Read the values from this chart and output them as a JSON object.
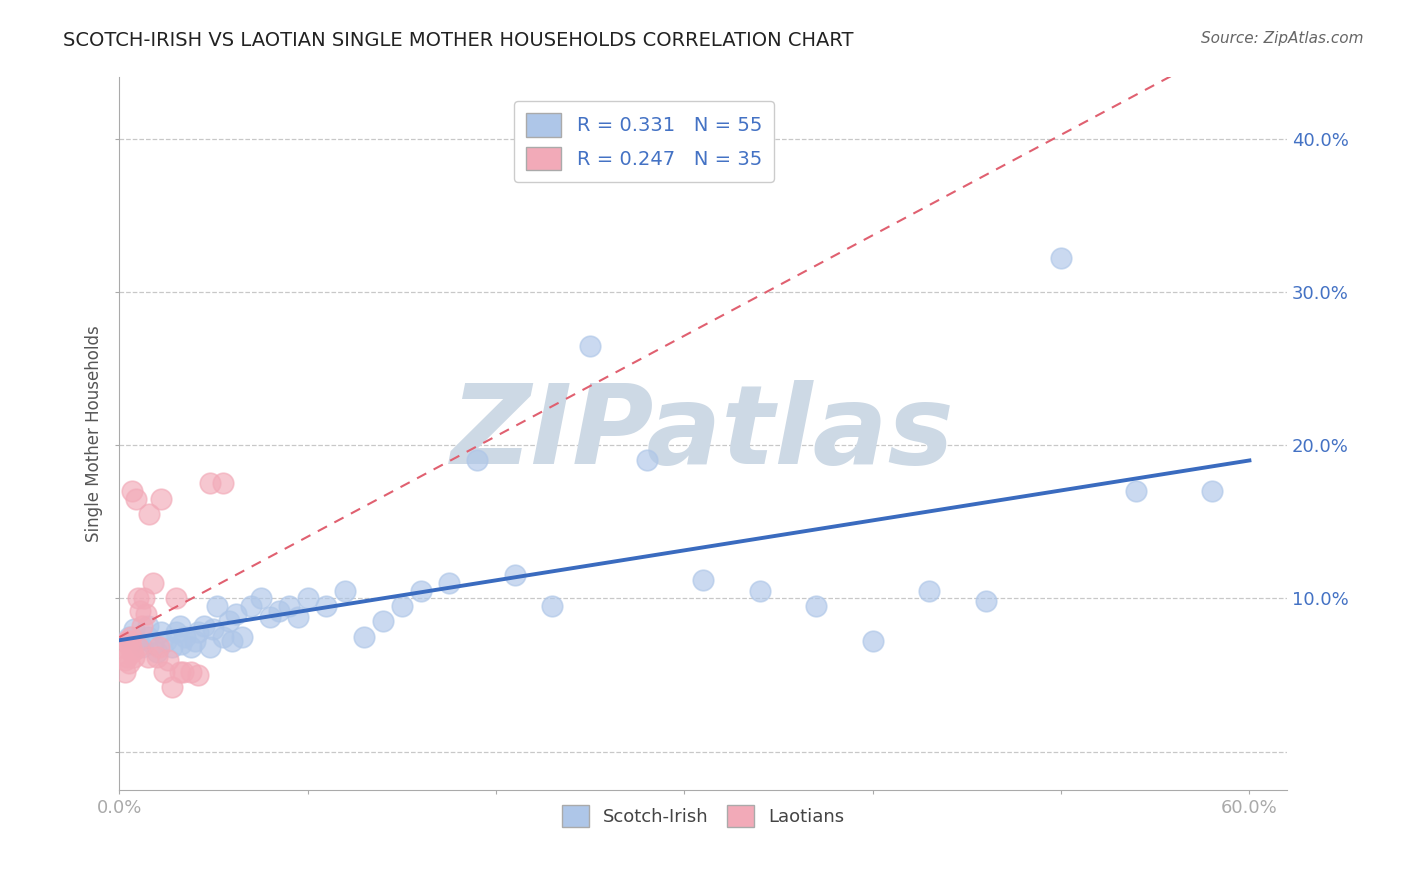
{
  "title": "SCOTCH-IRISH VS LAOTIAN SINGLE MOTHER HOUSEHOLDS CORRELATION CHART",
  "source": "Source: ZipAtlas.com",
  "ylabel": "Single Mother Households",
  "xlim": [
    0.0,
    0.62
  ],
  "ylim": [
    -0.025,
    0.44
  ],
  "scotch_irish_R": 0.331,
  "scotch_irish_N": 55,
  "laotian_R": 0.247,
  "laotian_N": 35,
  "scotch_irish_color": "#aec6e8",
  "laotian_color": "#f2aab8",
  "trend_scotch_color": "#3a6bbf",
  "trend_laotian_color": "#e06070",
  "scotch_irish_x": [
    0.005,
    0.008,
    0.01,
    0.012,
    0.015,
    0.015,
    0.018,
    0.02,
    0.022,
    0.025,
    0.028,
    0.03,
    0.032,
    0.033,
    0.035,
    0.038,
    0.04,
    0.042,
    0.045,
    0.048,
    0.05,
    0.052,
    0.055,
    0.058,
    0.06,
    0.062,
    0.065,
    0.07,
    0.075,
    0.08,
    0.085,
    0.09,
    0.095,
    0.1,
    0.11,
    0.12,
    0.13,
    0.14,
    0.15,
    0.16,
    0.175,
    0.19,
    0.21,
    0.23,
    0.25,
    0.28,
    0.31,
    0.34,
    0.37,
    0.4,
    0.43,
    0.46,
    0.5,
    0.54,
    0.58
  ],
  "scotch_irish_y": [
    0.075,
    0.08,
    0.072,
    0.068,
    0.075,
    0.082,
    0.07,
    0.065,
    0.078,
    0.072,
    0.068,
    0.078,
    0.082,
    0.07,
    0.075,
    0.068,
    0.072,
    0.078,
    0.082,
    0.068,
    0.08,
    0.095,
    0.075,
    0.085,
    0.072,
    0.09,
    0.075,
    0.095,
    0.1,
    0.088,
    0.092,
    0.095,
    0.088,
    0.1,
    0.095,
    0.105,
    0.075,
    0.085,
    0.095,
    0.105,
    0.11,
    0.19,
    0.115,
    0.095,
    0.265,
    0.19,
    0.112,
    0.105,
    0.095,
    0.072,
    0.105,
    0.098,
    0.322,
    0.17,
    0.17
  ],
  "laotian_x": [
    0.002,
    0.003,
    0.003,
    0.004,
    0.004,
    0.005,
    0.005,
    0.006,
    0.006,
    0.007,
    0.007,
    0.008,
    0.009,
    0.01,
    0.01,
    0.011,
    0.012,
    0.013,
    0.014,
    0.015,
    0.016,
    0.018,
    0.02,
    0.021,
    0.022,
    0.024,
    0.026,
    0.028,
    0.03,
    0.032,
    0.034,
    0.038,
    0.042,
    0.048,
    0.055
  ],
  "laotian_y": [
    0.068,
    0.06,
    0.052,
    0.062,
    0.072,
    0.058,
    0.072,
    0.068,
    0.075,
    0.065,
    0.17,
    0.062,
    0.165,
    0.068,
    0.1,
    0.092,
    0.082,
    0.1,
    0.09,
    0.062,
    0.155,
    0.11,
    0.062,
    0.068,
    0.165,
    0.052,
    0.06,
    0.042,
    0.1,
    0.052,
    0.052,
    0.052,
    0.05,
    0.175,
    0.175
  ],
  "background_color": "#ffffff",
  "grid_color": "#c8c8c8",
  "watermark_color": "#cdd9e5",
  "legend_label_scotch": "Scotch-Irish",
  "legend_label_laotian": "Laotians"
}
